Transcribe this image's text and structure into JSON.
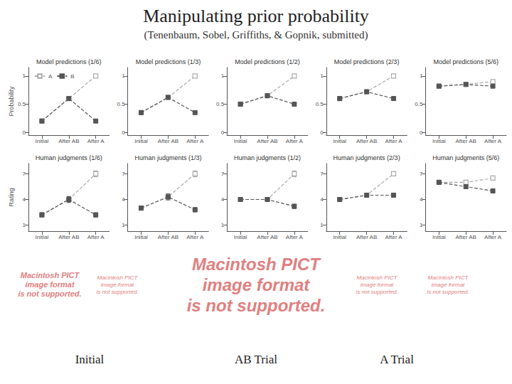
{
  "title": "Manipulating prior probability",
  "subtitle": "(Tenenbaum, Sobel, Griffiths, & Gopnik, submitted)",
  "annotations": [
    {
      "text": "Macintosh PICT\nimage format\nis not supported.",
      "color": "#e08080"
    },
    {
      "text": "Macintosh PICT\nimage format\nis not supported.",
      "color": "#e08080"
    },
    {
      "text": "Macintosh PICT\nimage format\nis not supported.",
      "color": "#e08080"
    },
    {
      "text": "Macintosh PICT\nimage format\nis not supported.",
      "color": "#e08080"
    },
    {
      "text": "Macintosh PICT\nimage format\nis not supported.",
      "color": "#e08080"
    },
    "Initial",
    "AB Trial",
    "A Trial"
  ],
  "chart_data": [
    {
      "type": "line",
      "title": "Model predictions (1/6)",
      "categories": [
        "Initial",
        "After AB",
        "After A"
      ],
      "series": [
        {
          "name": "A",
          "color": "#aaaaaa",
          "marker": "open_square",
          "line_style": "dashed",
          "values": [
            0.2,
            0.6,
            1.0
          ]
        },
        {
          "name": "B",
          "color": "#555555",
          "marker": "square",
          "line_style": "dashed",
          "values": [
            0.2,
            0.6,
            0.2
          ]
        }
      ],
      "ylim": [
        -0.05,
        1.15
      ],
      "yticks": [
        0,
        0.5,
        1
      ],
      "ylabel": "Probability",
      "legend": "upper left",
      "grid": false
    },
    {
      "type": "line",
      "title": "Human judgments (1/6)",
      "categories": [
        "Initial",
        "After AB",
        "After A"
      ],
      "series": [
        {
          "name": "A",
          "color": "#aaaaaa",
          "marker": "open_square",
          "line_style": "dashed",
          "values": [
            2.2,
            4.0,
            7.0
          ],
          "errors": [
            0.25,
            0.35,
            0.35
          ]
        },
        {
          "name": "B",
          "color": "#555555",
          "marker": "square",
          "line_style": "dashed",
          "values": [
            2.2,
            4.0,
            2.2
          ],
          "errors": [
            0.25,
            0.35,
            0.25
          ]
        }
      ],
      "ylim": [
        0.3,
        8.2
      ],
      "yticks": [
        1,
        4,
        7
      ],
      "ylabel": "Rating",
      "grid": false
    },
    {
      "type": "line",
      "title": "Model predictions (1/3)",
      "categories": [
        "Initial",
        "After AB",
        "After A"
      ],
      "series": [
        {
          "name": "A",
          "color": "#aaaaaa",
          "marker": "open_square",
          "line_style": "dashed",
          "values": [
            0.35,
            0.62,
            1.0
          ]
        },
        {
          "name": "B",
          "color": "#555555",
          "marker": "square",
          "line_style": "dashed",
          "values": [
            0.35,
            0.62,
            0.35
          ]
        }
      ],
      "ylim": [
        -0.05,
        1.15
      ],
      "yticks": [
        0,
        0.5,
        1
      ],
      "grid": false
    },
    {
      "type": "line",
      "title": "Human judgments (1/3)",
      "categories": [
        "Initial",
        "After AB",
        "After A"
      ],
      "series": [
        {
          "name": "A",
          "color": "#aaaaaa",
          "marker": "open_square",
          "line_style": "dashed",
          "values": [
            3.0,
            4.3,
            7.0
          ],
          "errors": [
            0.25,
            0.35,
            0.35
          ]
        },
        {
          "name": "B",
          "color": "#555555",
          "marker": "square",
          "line_style": "dashed",
          "values": [
            3.0,
            4.3,
            2.8
          ],
          "errors": [
            0.25,
            0.35,
            0.25
          ]
        }
      ],
      "ylim": [
        0.3,
        8.2
      ],
      "yticks": [
        1,
        4,
        7
      ],
      "grid": false
    },
    {
      "type": "line",
      "title": "Model predictions (1/2)",
      "categories": [
        "Initial",
        "After AB",
        "After A"
      ],
      "series": [
        {
          "name": "A",
          "color": "#aaaaaa",
          "marker": "open_square",
          "line_style": "dashed",
          "values": [
            0.5,
            0.65,
            1.0
          ]
        },
        {
          "name": "B",
          "color": "#555555",
          "marker": "square",
          "line_style": "dashed",
          "values": [
            0.5,
            0.65,
            0.5
          ]
        }
      ],
      "ylim": [
        -0.05,
        1.15
      ],
      "yticks": [
        0,
        0.5,
        1
      ],
      "grid": false
    },
    {
      "type": "line",
      "title": "Human judgments (1/2)",
      "categories": [
        "Initial",
        "After AB",
        "After A"
      ],
      "series": [
        {
          "name": "A",
          "color": "#aaaaaa",
          "marker": "open_square",
          "line_style": "dashed",
          "values": [
            4.0,
            4.0,
            7.0
          ],
          "errors": [
            0.25,
            0.25,
            0.35
          ]
        },
        {
          "name": "B",
          "color": "#555555",
          "marker": "square",
          "line_style": "dashed",
          "values": [
            4.0,
            4.0,
            3.2
          ],
          "errors": [
            0.25,
            0.25,
            0.25
          ]
        }
      ],
      "ylim": [
        0.3,
        8.2
      ],
      "yticks": [
        1,
        4,
        7
      ],
      "grid": false
    },
    {
      "type": "line",
      "title": "Model predictions (2/3)",
      "categories": [
        "Initial",
        "After AB",
        "After A"
      ],
      "series": [
        {
          "name": "A",
          "color": "#aaaaaa",
          "marker": "open_square",
          "line_style": "dashed",
          "values": [
            0.6,
            0.72,
            1.0
          ]
        },
        {
          "name": "B",
          "color": "#555555",
          "marker": "square",
          "line_style": "dashed",
          "values": [
            0.6,
            0.72,
            0.6
          ]
        }
      ],
      "ylim": [
        -0.05,
        1.15
      ],
      "yticks": [
        0,
        0.5,
        1
      ],
      "grid": false
    },
    {
      "type": "line",
      "title": "Human judgments (2/3)",
      "categories": [
        "Initial",
        "After AB",
        "After A"
      ],
      "series": [
        {
          "name": "A",
          "color": "#aaaaaa",
          "marker": "open_square",
          "line_style": "dashed",
          "values": [
            4.0,
            4.5,
            7.0
          ],
          "errors": [
            0.25,
            0.25,
            0.25
          ]
        },
        {
          "name": "B",
          "color": "#555555",
          "marker": "square",
          "line_style": "dashed",
          "values": [
            4.0,
            4.5,
            4.5
          ],
          "errors": [
            0.25,
            0.25,
            0.25
          ]
        }
      ],
      "ylim": [
        0.3,
        8.2
      ],
      "yticks": [
        1,
        4,
        7
      ],
      "grid": false
    },
    {
      "type": "line",
      "title": "Model predictions (5/6)",
      "categories": [
        "Initial",
        "After AB",
        "After A"
      ],
      "series": [
        {
          "name": "A",
          "color": "#aaaaaa",
          "marker": "open_square",
          "line_style": "dashed",
          "values": [
            0.82,
            0.85,
            0.9
          ]
        },
        {
          "name": "B",
          "color": "#555555",
          "marker": "square",
          "line_style": "dashed",
          "values": [
            0.82,
            0.85,
            0.82
          ]
        }
      ],
      "ylim": [
        -0.05,
        1.15
      ],
      "yticks": [
        0,
        0.5,
        1
      ],
      "grid": false
    },
    {
      "type": "line",
      "title": "Human judgments (5/6)",
      "categories": [
        "Initial",
        "After AB",
        "After A"
      ],
      "series": [
        {
          "name": "A",
          "color": "#aaaaaa",
          "marker": "open_square",
          "line_style": "dashed",
          "values": [
            6.0,
            6.0,
            6.5
          ],
          "errors": [
            0.25,
            0.25,
            0.25
          ]
        },
        {
          "name": "B",
          "color": "#555555",
          "marker": "square",
          "line_style": "dashed",
          "values": [
            6.0,
            5.5,
            5.0
          ],
          "errors": [
            0.25,
            0.25,
            0.25
          ]
        }
      ],
      "ylim": [
        0.3,
        8.2
      ],
      "yticks": [
        1,
        4,
        7
      ],
      "grid": false
    }
  ]
}
